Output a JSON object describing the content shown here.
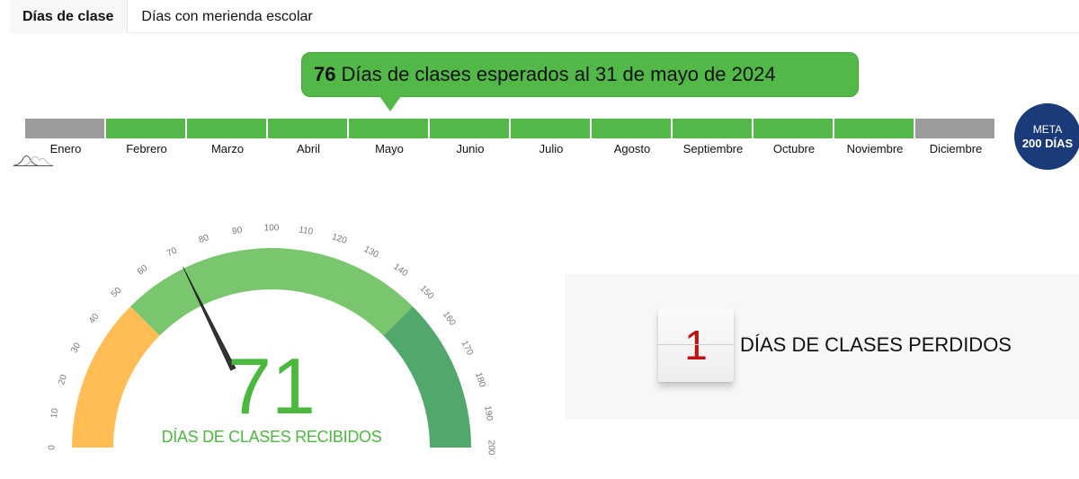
{
  "tabs": [
    {
      "label": "Días de clase",
      "active": true
    },
    {
      "label": "Días con merienda escolar",
      "active": false
    }
  ],
  "tooltip": {
    "number": "76",
    "text": "Días de clases esperados al 31 de mayo de 2024"
  },
  "months": [
    {
      "label": "Enero",
      "status": "inactive"
    },
    {
      "label": "Febrero",
      "status": "active"
    },
    {
      "label": "Marzo",
      "status": "active"
    },
    {
      "label": "Abril",
      "status": "active"
    },
    {
      "label": "Mayo",
      "status": "active"
    },
    {
      "label": "Junio",
      "status": "active"
    },
    {
      "label": "Julio",
      "status": "active"
    },
    {
      "label": "Agosto",
      "status": "active"
    },
    {
      "label": "Septiembre",
      "status": "active"
    },
    {
      "label": "Octubre",
      "status": "active"
    },
    {
      "label": "Noviembre",
      "status": "active"
    },
    {
      "label": "Diciembre",
      "status": "inactive"
    }
  ],
  "colors": {
    "active": "#52b848",
    "inactive": "#9b9b9b",
    "meta": "#1b3a7a",
    "orange": "#ffbd54",
    "lightgreen": "#79c66f",
    "darkgreen": "#52a86c",
    "value": "#4cb83f",
    "lost": "#c01010"
  },
  "meta": {
    "line1": "META",
    "line2": "200 DÍAS"
  },
  "gauge": {
    "min": 0,
    "max": 200,
    "value": 71,
    "label": "DÍAS DE CLASES RECIBIDOS",
    "ticks": [
      0,
      10,
      20,
      30,
      40,
      50,
      60,
      70,
      80,
      90,
      100,
      110,
      120,
      130,
      140,
      150,
      160,
      170,
      180,
      190,
      200
    ],
    "bands": [
      {
        "from": 0,
        "to": 50,
        "color": "#ffbd54"
      },
      {
        "from": 50,
        "to": 150,
        "color": "#79c66f"
      },
      {
        "from": 150,
        "to": 200,
        "color": "#52a86c"
      }
    ]
  },
  "lost": {
    "value": "1",
    "label": "DÍAS DE CLASES PERDIDOS"
  }
}
